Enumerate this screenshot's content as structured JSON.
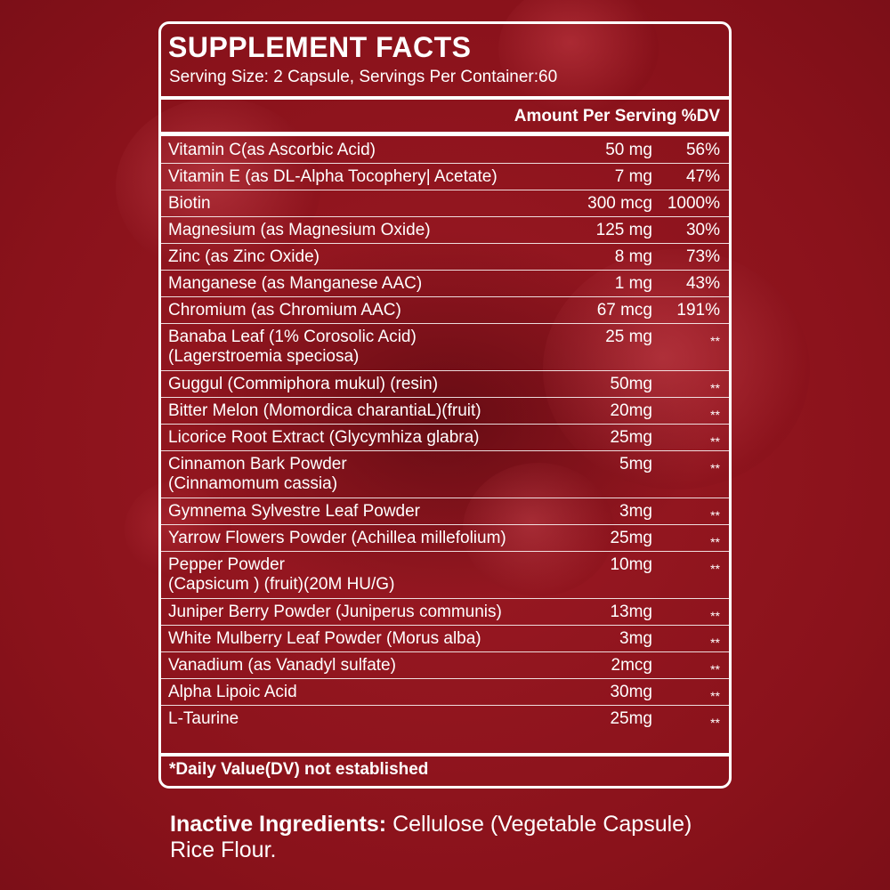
{
  "title": "SUPPLEMENT FACTS",
  "serving": "Serving Size: 2 Capsule, Servings Per Container:60",
  "amount_header": "Amount Per Serving %DV",
  "rows": [
    {
      "name": "Vitamin C(as Ascorbic Acid)",
      "amount": "50 mg",
      "dv": "56%"
    },
    {
      "name": "Vitamin E (as DL-Alpha Tocophery| Acetate)",
      "amount": "7 mg",
      "dv": "47%"
    },
    {
      "name": "Biotin",
      "amount": "300 mcg",
      "dv": "1000%"
    },
    {
      "name": "Magnesium (as Magnesium Oxide)",
      "amount": "125 mg",
      "dv": "30%"
    },
    {
      "name": "Zinc (as Zinc Oxide)",
      "amount": "8 mg",
      "dv": "73%"
    },
    {
      "name": "Manganese (as Manganese AAC)",
      "amount": "1 mg",
      "dv": "43%"
    },
    {
      "name": "Chromium (as Chromium AAC)",
      "amount": "67 mcg",
      "dv": "191%"
    },
    {
      "name": "Banaba Leaf (1% Corosolic Acid)\n(Lagerstroemia speciosa)",
      "amount": "25 mg",
      "dv": "**"
    },
    {
      "name": "Guggul (Commiphora mukul) (resin)",
      "amount": "50mg",
      "dv": "**"
    },
    {
      "name": "Bitter Melon (Momordica charantiaL)(fruit)",
      "amount": "20mg",
      "dv": "**"
    },
    {
      "name": "Licorice Root Extract (Glycymhiza glabra)",
      "amount": "25mg",
      "dv": "**"
    },
    {
      "name": "Cinnamon Bark Powder\n(Cinnamomum cassia)",
      "amount": "5mg",
      "dv": "**"
    },
    {
      "name": "Gymnema Sylvestre Leaf Powder",
      "amount": "3mg",
      "dv": "**"
    },
    {
      "name": "Yarrow Flowers Powder (Achillea millefolium)",
      "amount": "25mg",
      "dv": "**"
    },
    {
      "name": "Pepper Powder\n(Capsicum ) (fruit)(20M HU/G)",
      "amount": "10mg",
      "dv": "**"
    },
    {
      "name": "Juniper Berry Powder (Juniperus communis)",
      "amount": "13mg",
      "dv": "**"
    },
    {
      "name": "White Mulberry Leaf Powder (Morus alba)",
      "amount": "3mg",
      "dv": "**"
    },
    {
      "name": "Vanadium (as Vanadyl sulfate)",
      "amount": "2mcg",
      "dv": "**"
    },
    {
      "name": "Alpha Lipoic Acid",
      "amount": "30mg",
      "dv": "**"
    },
    {
      "name": "L-Taurine",
      "amount": "25mg",
      "dv": "**"
    }
  ],
  "footnote": "*Daily Value(DV) not established",
  "inactive": {
    "label": "Inactive Ingredients:",
    "text": " Cellulose (Vegetable Capsule) Rice Flour."
  },
  "colors": {
    "background": "#8a121b",
    "text": "#ffffff"
  }
}
